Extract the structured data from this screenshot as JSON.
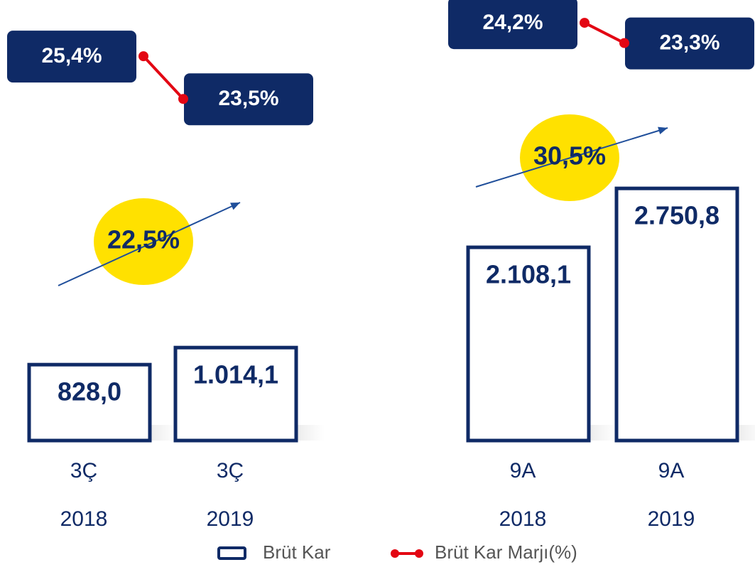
{
  "chart_data": {
    "type": "bar",
    "categories": [
      [
        "3Ç",
        "2018"
      ],
      [
        "3Ç",
        "2019"
      ],
      [
        "9A",
        "2018"
      ],
      [
        "9A",
        "2019"
      ]
    ],
    "series": [
      {
        "name": "Brüt Kar",
        "color": "#0f2a66",
        "values": [
          828.0,
          1014.1,
          2108.1,
          2750.8
        ],
        "value_labels": [
          "828,0",
          "1.014,1",
          "2.108,1",
          "2.750,8"
        ]
      },
      {
        "name": "Brüt Kar Marjı(%)",
        "color": "#e30613",
        "axis": "y2",
        "values": [
          25.4,
          23.5,
          24.2,
          23.3
        ],
        "value_labels": [
          "25,4%",
          "23,5%",
          "24,2%",
          "23,3%"
        ]
      }
    ],
    "growth": {
      "values": [
        22.5,
        30.5
      ],
      "value_labels": [
        "22,5%",
        "30,5%"
      ],
      "color": "#ffe100"
    },
    "ylim": [
      0,
      3000
    ],
    "y2lim": [
      20,
      27.9
    ]
  }
}
